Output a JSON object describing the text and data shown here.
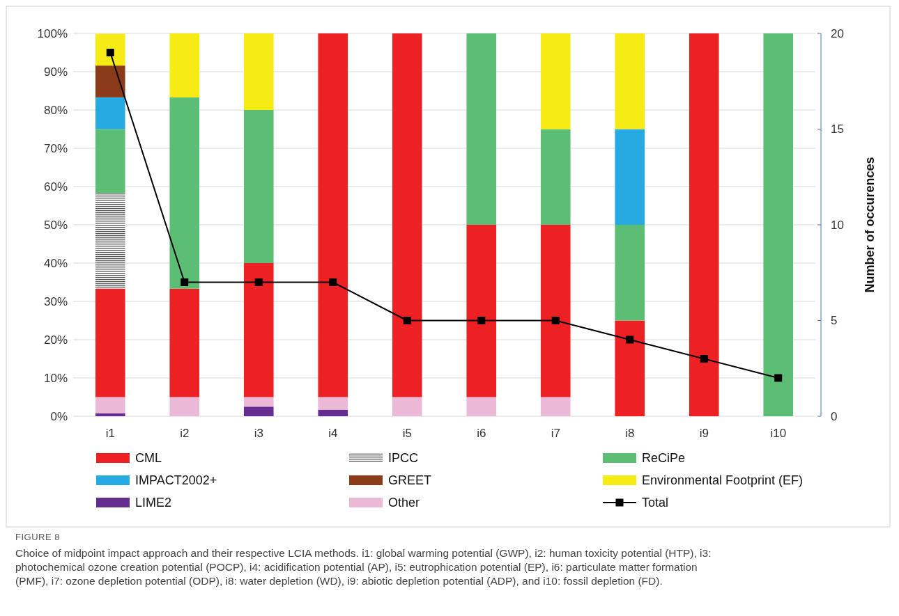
{
  "chart_data": {
    "type": "bar",
    "stacked": true,
    "y2label": "Number of occurences",
    "categories": [
      "i1",
      "i2",
      "i3",
      "i4",
      "i5",
      "i6",
      "i7",
      "i8",
      "i9",
      "i10"
    ],
    "series": [
      {
        "name": "LIME2",
        "color": "#662d91",
        "values": [
          0.8,
          0,
          2.5,
          1.7,
          0,
          0,
          0,
          0,
          0,
          0
        ]
      },
      {
        "name": "Other",
        "color": "#ebb9d6",
        "values": [
          4.2,
          5,
          2.5,
          3.3,
          5,
          5,
          5,
          0,
          0,
          0
        ]
      },
      {
        "name": "CML",
        "color": "#ed2024",
        "values": [
          28.3,
          28.3,
          35,
          95,
          95,
          45,
          45,
          25,
          100,
          0
        ]
      },
      {
        "name": "IPCC",
        "color": "#555555",
        "values": [
          25,
          0,
          0,
          0,
          0,
          0,
          0,
          0,
          0,
          0
        ]
      },
      {
        "name": "ReCiPe",
        "color": "#5cbd74",
        "values": [
          16.7,
          50,
          40,
          0,
          0,
          50,
          25,
          25,
          0,
          100
        ]
      },
      {
        "name": "IMPACT2002+",
        "color": "#27aae1",
        "values": [
          8.3,
          0,
          0,
          0,
          0,
          0,
          0,
          25,
          0,
          0
        ]
      },
      {
        "name": "GREET",
        "color": "#8b3a1a",
        "values": [
          8.3,
          0,
          0,
          0,
          0,
          0,
          0,
          0,
          0,
          0
        ]
      },
      {
        "name": "Environmental Footprint (EF)",
        "color": "#f6eb14",
        "values": [
          8.3,
          16.7,
          20,
          0,
          0,
          0,
          25,
          25,
          0,
          0
        ]
      },
      {
        "name": "Total",
        "type": "line",
        "axis": "y2",
        "color": "#000000",
        "marker": "square",
        "values": [
          19,
          7,
          7,
          7,
          5,
          5,
          5,
          4,
          3,
          2
        ]
      }
    ],
    "ylim": [
      0,
      100
    ],
    "yticks": [
      {
        "value": 0,
        "label": "0%"
      },
      {
        "value": 10,
        "label": "10%"
      },
      {
        "value": 20,
        "label": "20%"
      },
      {
        "value": 30,
        "label": "30%"
      },
      {
        "value": 40,
        "label": "40%"
      },
      {
        "value": 50,
        "label": "50%"
      },
      {
        "value": 60,
        "label": "60%"
      },
      {
        "value": 70,
        "label": "70%"
      },
      {
        "value": 80,
        "label": "80%"
      },
      {
        "value": 90,
        "label": "90%"
      },
      {
        "value": 100,
        "label": "100%"
      }
    ],
    "y2lim": [
      0,
      20
    ],
    "y2ticks": [
      0,
      5,
      10,
      15,
      20
    ],
    "grid": "y",
    "legend": "bottom",
    "annotations": [
      "FIGURE 8",
      "Choice of midpoint impact approach and their respective LCIA methods. i1: global warming potential (GWP), i2: human toxicity potential (HTP), i3: photochemical ozone creation potential (POCP), i4: acidification potential (AP), i5: eutrophication potential (EP), i6: particulate matter formation (PMF), i7: ozone depletion potential (ODP), i8: water depletion (WD), i9: abiotic depletion potential (ADP), and i10: fossil depletion (FD)."
    ]
  }
}
